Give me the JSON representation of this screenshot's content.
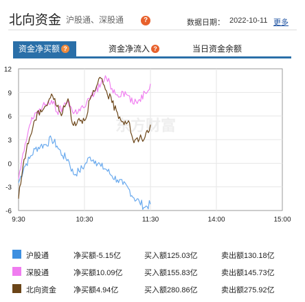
{
  "header": {
    "title": "北向资金",
    "subtitle": "沪股通、深股通",
    "date_label": "数据日期：",
    "date_value": "2022-10-11",
    "more_link": "更多"
  },
  "tabs": [
    {
      "label": "资金净买额",
      "active": true,
      "has_help": true
    },
    {
      "label": "资金净流入",
      "active": false,
      "has_help": true
    },
    {
      "label": "当日资金余额",
      "active": false,
      "has_help": false
    }
  ],
  "chart_data": {
    "type": "line",
    "x_ticks": [
      "9:30",
      "10:30",
      "11:30",
      "14:00",
      "15:00"
    ],
    "y_ticks": [
      12,
      9,
      6,
      3,
      0,
      -3,
      -6
    ],
    "ylim": [
      -6,
      12
    ],
    "grid": true,
    "watermark": "东方财富",
    "series": [
      {
        "name": "沪股通",
        "color": "#6aaaee",
        "x": [
          0,
          5,
          10,
          15,
          20,
          25,
          30,
          35,
          40,
          45,
          50,
          55,
          60,
          65,
          70,
          75,
          80,
          85,
          90,
          95,
          100,
          105,
          110,
          115,
          120
        ],
        "values": [
          -2.5,
          -0.5,
          0.6,
          1.8,
          2.2,
          2.4,
          3.1,
          2.2,
          1.0,
          0.5,
          -1.4,
          -1.0,
          -0.3,
          0.8,
          0.3,
          -0.4,
          -0.8,
          -1.6,
          -2.1,
          -2.7,
          -3.2,
          -4.4,
          -4.9,
          -5.6,
          -5.2
        ]
      },
      {
        "name": "深股通",
        "color": "#f080f0",
        "x": [
          0,
          5,
          10,
          15,
          20,
          25,
          30,
          35,
          40,
          45,
          50,
          55,
          60,
          65,
          70,
          75,
          80,
          85,
          90,
          95,
          100,
          105,
          110,
          115,
          120
        ],
        "values": [
          -2.0,
          1.5,
          4.8,
          6.4,
          6.8,
          7.5,
          8.0,
          6.5,
          7.0,
          8.0,
          6.3,
          6.9,
          7.1,
          8.2,
          9.2,
          10.1,
          10.8,
          9.5,
          8.7,
          9.1,
          8.6,
          7.5,
          8.1,
          9.0,
          10.1
        ]
      },
      {
        "name": "北向资金",
        "color": "#6b4518",
        "x": [
          0,
          5,
          10,
          15,
          20,
          25,
          30,
          35,
          40,
          45,
          50,
          55,
          60,
          65,
          70,
          75,
          80,
          85,
          90,
          95,
          100,
          105,
          110,
          115,
          120
        ],
        "values": [
          -4.5,
          0.5,
          3.2,
          5.5,
          6.8,
          7.3,
          8.8,
          7.2,
          6.4,
          8.2,
          4.8,
          5.7,
          5.4,
          8.1,
          9.3,
          10.8,
          9.2,
          7.7,
          6.4,
          5.3,
          5.4,
          2.6,
          3.1,
          3.3,
          4.9
        ]
      }
    ]
  },
  "legend": [
    {
      "color": "#3d8fe0",
      "name": "沪股通",
      "net": "净买额-5.15亿",
      "buy": "买入额125.03亿",
      "sell": "卖出额130.18亿"
    },
    {
      "color": "#f07cf0",
      "name": "深股通",
      "net": "净买额10.09亿",
      "buy": "买入额155.83亿",
      "sell": "卖出额145.73亿"
    },
    {
      "color": "#6b4518",
      "name": "北向资金",
      "net": "净买额4.94亿",
      "buy": "买入额280.86亿",
      "sell": "卖出额275.92亿"
    }
  ]
}
